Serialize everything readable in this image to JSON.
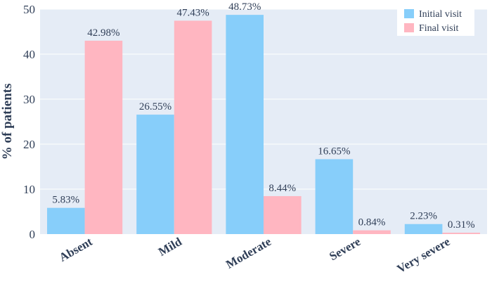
{
  "chart_data": {
    "type": "bar",
    "title": "",
    "xlabel": "",
    "ylabel": "% of patients",
    "ylim": [
      0,
      50
    ],
    "yticks": [
      0,
      10,
      20,
      30,
      40,
      50
    ],
    "grid": true,
    "legend_position": "top-right",
    "categories": [
      "Absent",
      "Mild",
      "Moderate",
      "Severe",
      "Very severe"
    ],
    "series": [
      {
        "name": "Initial visit",
        "color": "#87CEFA",
        "values": [
          5.83,
          26.55,
          48.73,
          16.65,
          2.23
        ],
        "labels": [
          "5.83%",
          "26.55%",
          "48.73%",
          "16.65%",
          "2.23%"
        ]
      },
      {
        "name": "Final visit",
        "color": "#FFB6C1",
        "values": [
          42.98,
          47.43,
          8.44,
          0.84,
          0.31
        ],
        "labels": [
          "42.98%",
          "47.43%",
          "8.44%",
          "0.84%",
          "0.31%"
        ]
      }
    ],
    "colors": {
      "plot_background": "#E5ECF6",
      "grid": "#FFFFFF",
      "text": "#2F3E57"
    }
  }
}
